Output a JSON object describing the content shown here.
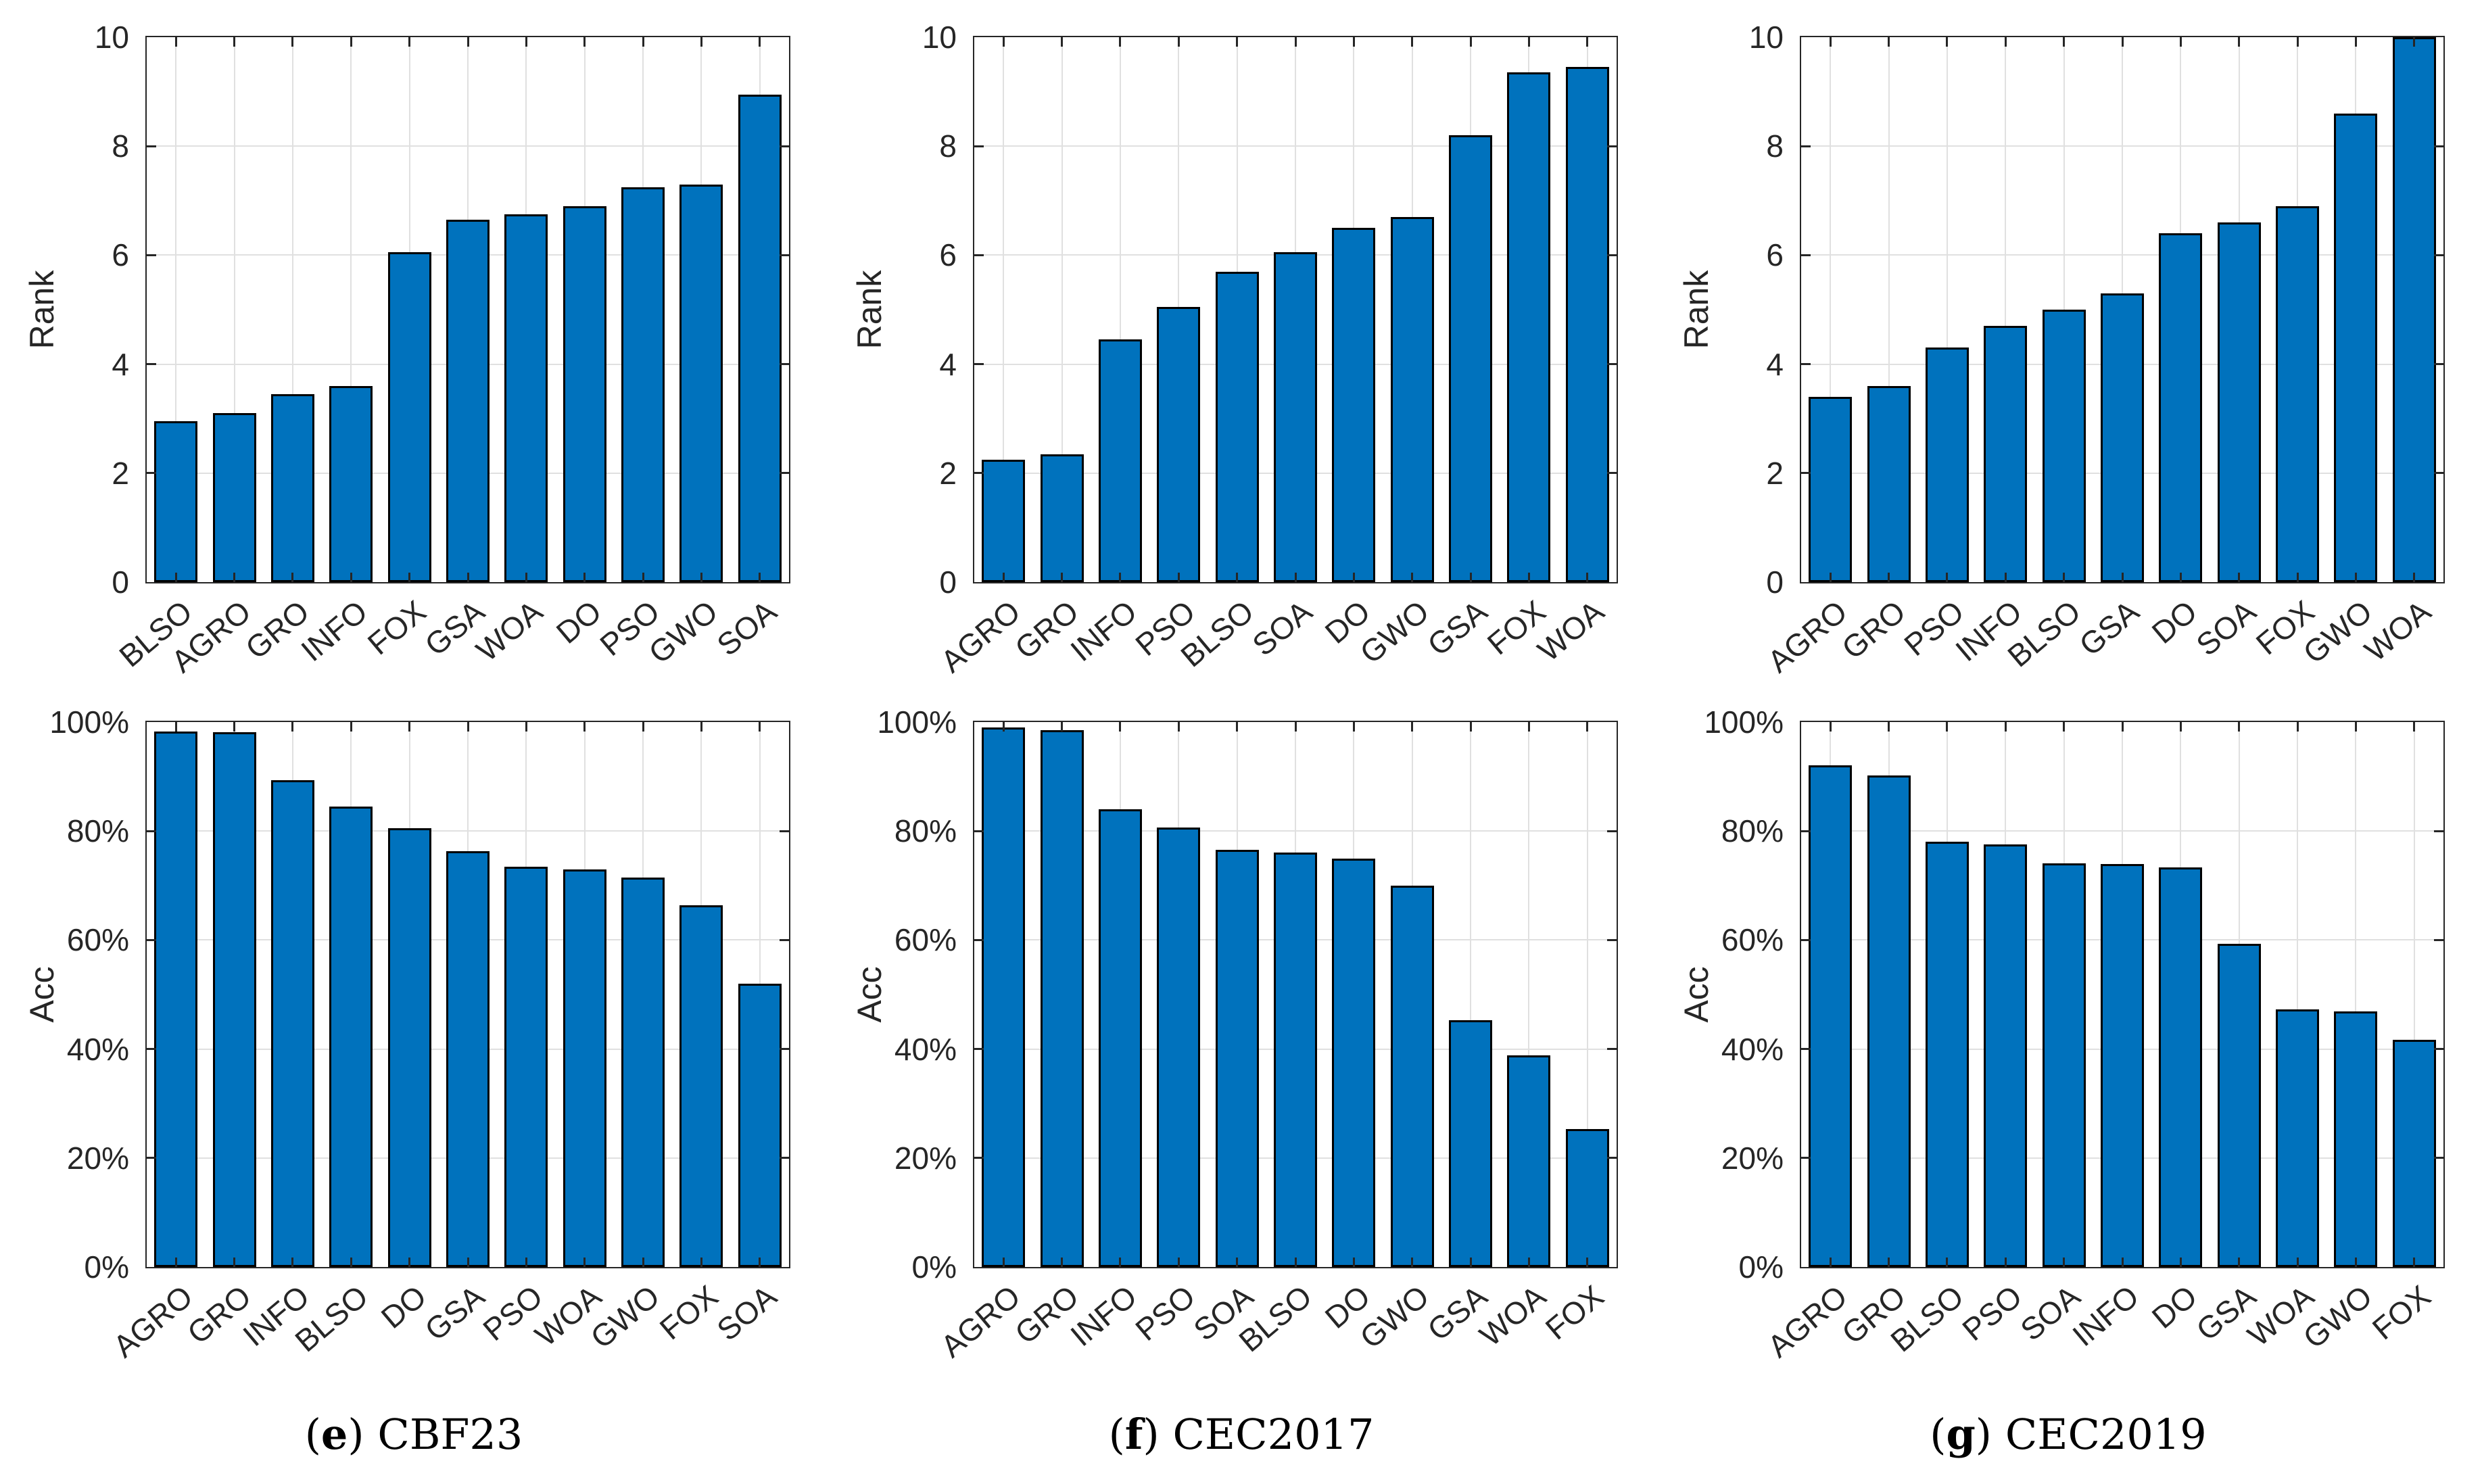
{
  "figure": {
    "background": "#ffffff",
    "bar_color": "#0072BD",
    "bar_edge_color": "#000000",
    "axis_color": "#262626",
    "grid_color": "#e0e0e0"
  },
  "chart_data": [
    {
      "id": "rank-cbf23",
      "type": "bar",
      "title": "",
      "xlabel": "",
      "ylabel": "Rank",
      "ylim": [
        0,
        10
      ],
      "grid": true,
      "yticks": [
        0,
        2,
        4,
        6,
        8,
        10
      ],
      "ytick_labels": [
        "0",
        "2",
        "4",
        "6",
        "8",
        "10"
      ],
      "categories": [
        "BLSO",
        "AGRO",
        "GRO",
        "INFO",
        "FOX",
        "GSA",
        "WOA",
        "DO",
        "PSO",
        "GWO",
        "SOA"
      ],
      "values": [
        2.95,
        3.1,
        3.45,
        3.6,
        6.05,
        6.65,
        6.75,
        6.9,
        7.25,
        7.3,
        8.95
      ]
    },
    {
      "id": "rank-cec2017",
      "type": "bar",
      "title": "",
      "xlabel": "",
      "ylabel": "Rank",
      "ylim": [
        0,
        10
      ],
      "grid": true,
      "yticks": [
        0,
        2,
        4,
        6,
        8,
        10
      ],
      "ytick_labels": [
        "0",
        "2",
        "4",
        "6",
        "8",
        "10"
      ],
      "categories": [
        "AGRO",
        "GRO",
        "INFO",
        "PSO",
        "BLSO",
        "SOA",
        "DO",
        "GWO",
        "GSA",
        "FOX",
        "WOA"
      ],
      "values": [
        2.25,
        2.35,
        4.45,
        5.05,
        5.7,
        6.05,
        6.5,
        6.7,
        8.2,
        9.35,
        9.45
      ]
    },
    {
      "id": "rank-cec2019",
      "type": "bar",
      "title": "",
      "xlabel": "",
      "ylabel": "Rank",
      "ylim": [
        0,
        10
      ],
      "grid": true,
      "yticks": [
        0,
        2,
        4,
        6,
        8,
        10
      ],
      "ytick_labels": [
        "0",
        "2",
        "4",
        "6",
        "8",
        "10"
      ],
      "categories": [
        "AGRO",
        "GRO",
        "PSO",
        "INFO",
        "BLSO",
        "GSA",
        "DO",
        "SOA",
        "FOX",
        "GWO",
        "WOA"
      ],
      "values": [
        3.4,
        3.6,
        4.3,
        4.7,
        5.0,
        5.3,
        6.4,
        6.6,
        6.9,
        8.6,
        10.0
      ]
    },
    {
      "id": "acc-cbf23",
      "type": "bar",
      "title": "",
      "xlabel": "",
      "ylabel": "Acc",
      "ylim": [
        0,
        100
      ],
      "grid": true,
      "yticks": [
        0,
        20,
        40,
        60,
        80,
        100
      ],
      "ytick_labels": [
        "0%",
        "20%",
        "40%",
        "60%",
        "80%",
        "100%"
      ],
      "categories": [
        "AGRO",
        "GRO",
        "INFO",
        "BLSO",
        "DO",
        "GSA",
        "PSO",
        "WOA",
        "GWO",
        "FOX",
        "SOA"
      ],
      "values": [
        98.3,
        98.1,
        89.3,
        84.5,
        80.5,
        76.3,
        73.4,
        73.0,
        71.5,
        66.4,
        52.0
      ]
    },
    {
      "id": "acc-cec2017",
      "type": "bar",
      "title": "",
      "xlabel": "",
      "ylabel": "Acc",
      "ylim": [
        0,
        100
      ],
      "grid": true,
      "yticks": [
        0,
        20,
        40,
        60,
        80,
        100
      ],
      "ytick_labels": [
        "0%",
        "20%",
        "40%",
        "60%",
        "80%",
        "100%"
      ],
      "categories": [
        "AGRO",
        "GRO",
        "INFO",
        "PSO",
        "SOA",
        "BLSO",
        "DO",
        "GWO",
        "GSA",
        "WOA",
        "FOX"
      ],
      "values": [
        99.0,
        98.5,
        84.0,
        80.7,
        76.6,
        76.1,
        75.0,
        70.0,
        45.3,
        38.8,
        25.3
      ]
    },
    {
      "id": "acc-cec2019",
      "type": "bar",
      "title": "",
      "xlabel": "",
      "ylabel": "Acc",
      "ylim": [
        0,
        100
      ],
      "grid": true,
      "yticks": [
        0,
        20,
        40,
        60,
        80,
        100
      ],
      "ytick_labels": [
        "0%",
        "20%",
        "40%",
        "60%",
        "80%",
        "100%"
      ],
      "categories": [
        "AGRO",
        "GRO",
        "BLSO",
        "PSO",
        "SOA",
        "INFO",
        "DO",
        "GSA",
        "WOA",
        "GWO",
        "FOX"
      ],
      "values": [
        92.0,
        90.2,
        78.0,
        77.6,
        74.1,
        73.9,
        73.3,
        59.3,
        47.3,
        46.9,
        41.7
      ]
    }
  ],
  "captions": [
    {
      "prefix": "(",
      "letter": "e",
      "suffix": ")",
      "title": "CBF23"
    },
    {
      "prefix": "(",
      "letter": "f",
      "suffix": ")",
      "title": "CEC2017"
    },
    {
      "prefix": "(",
      "letter": "g",
      "suffix": ")",
      "title": "CEC2019"
    }
  ]
}
